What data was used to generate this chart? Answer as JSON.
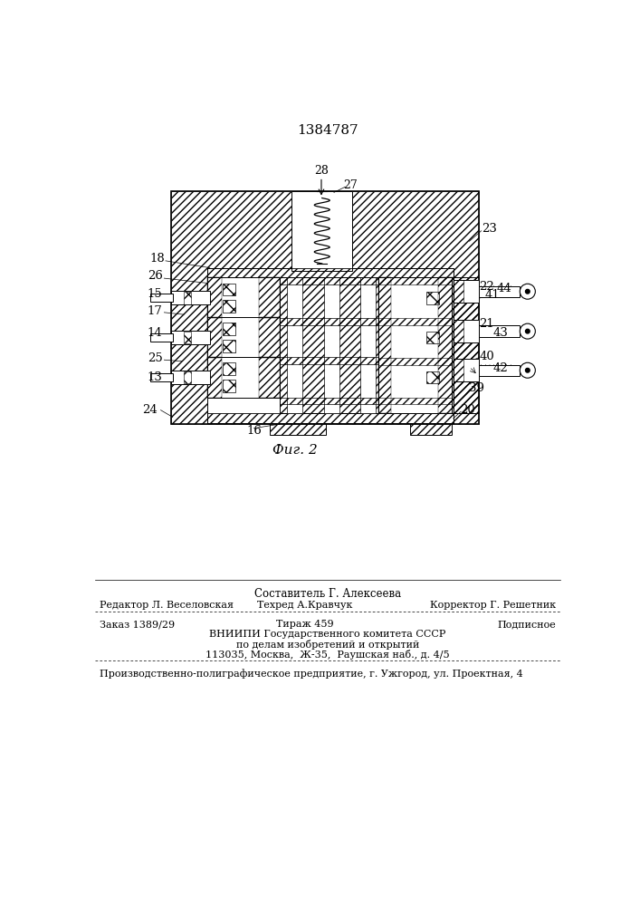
{
  "patent_number": "1384787",
  "figure_label": "Фиг. 2",
  "bg_color": "#ffffff",
  "footer": {
    "compiler": "Составитель Г. Алексеева",
    "editor": "Редактор Л. Веселовская",
    "techred": "Техред А.Кравчук",
    "corrector": "Корректор Г. Решетник",
    "order": "Заказ 1389/29",
    "tirazh": "Тираж 459",
    "podpisnoe": "Подписное",
    "vnipi_line1": "ВНИИПИ Государственного комитета СССР",
    "vnipi_line2": "по делам изобретений и открытий",
    "vnipi_line3": "113035, Москва,  Ж-35,  Раушская наб., д. 4/5",
    "printer": "Производственно-полиграфическое предприятие, г. Ужгород, ул. Проектная, 4"
  }
}
